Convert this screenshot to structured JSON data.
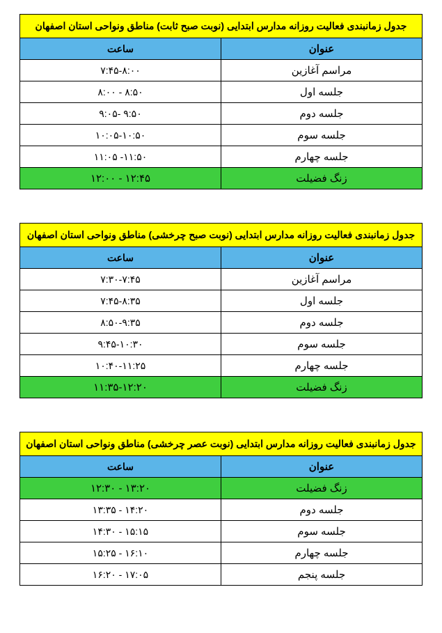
{
  "colors": {
    "title_bg": "#ffff00",
    "header_bg": "#5bb5e8",
    "highlight_bg": "#3fce3f",
    "row_bg": "#ffffff",
    "border": "#000000",
    "text": "#000000"
  },
  "typography": {
    "font_family": "Tahoma, Arial, sans-serif",
    "title_fontsize": 14,
    "title_fontweight": "bold",
    "header_fontsize": 14,
    "header_fontweight": "bold",
    "cell_fontsize": 14
  },
  "tables": [
    {
      "title": "جدول زمانبندی فعالیت روزانه مدارس ابتدایی (نوبت صبح ثابت) مناطق ونواحی استان اصفهان",
      "columns": [
        "عنوان",
        "ساعت"
      ],
      "rows": [
        {
          "label": "مراسم آغازین",
          "time": "۷:۴۵-۸:۰۰",
          "highlight": false
        },
        {
          "label": "جلسه اول",
          "time": "۸:۰۰ - ۸:۵۰",
          "highlight": false
        },
        {
          "label": "جلسه دوم",
          "time": "۹:۰۵- ۹:۵۰",
          "highlight": false
        },
        {
          "label": "جلسه سوم",
          "time": "۱۰:۰۵-۱۰:۵۰",
          "highlight": false
        },
        {
          "label": "جلسه چهارم",
          "time": "۱۱:۰۵ -۱۱:۵۰",
          "highlight": false
        },
        {
          "label": "زنگ فضیلت",
          "time": "۱۲:۰۰ - ۱۲:۴۵",
          "highlight": true
        }
      ]
    },
    {
      "title": "جدول زمانبندی فعالیت روزانه مدارس ابتدایی (نوبت صبح چرخشی) مناطق ونواحی استان اصفهان",
      "columns": [
        "عنوان",
        "ساعت"
      ],
      "rows": [
        {
          "label": "مراسم آغازین",
          "time": "۷:۳۰-۷:۴۵",
          "highlight": false
        },
        {
          "label": "جلسه اول",
          "time": "۷:۴۵-۸:۳۵",
          "highlight": false
        },
        {
          "label": "جلسه دوم",
          "time": "۸:۵۰-۹:۳۵",
          "highlight": false
        },
        {
          "label": "جلسه سوم",
          "time": "۹:۴۵-۱۰:۳۰",
          "highlight": false
        },
        {
          "label": "جلسه چهارم",
          "time": "۱۰:۴۰-۱۱:۲۵",
          "highlight": false
        },
        {
          "label": "زنگ فضیلت",
          "time": "۱۱:۳۵-۱۲:۲۰",
          "highlight": true
        }
      ]
    },
    {
      "title": "جدول زمانبندی فعالیت روزانه مدارس ابتدایی (نوبت عصر چرخشی) مناطق ونواحی استان اصفهان",
      "columns": [
        "عنوان",
        "ساعت"
      ],
      "rows": [
        {
          "label": "زنگ فضیلت",
          "time": "۱۲:۳۰ - ۱۳:۲۰",
          "highlight": true
        },
        {
          "label": "جلسه دوم",
          "time": "۱۳:۳۵ - ۱۴:۲۰",
          "highlight": false
        },
        {
          "label": "جلسه سوم",
          "time": "۱۴:۳۰ - ۱۵:۱۵",
          "highlight": false
        },
        {
          "label": "جلسه چهارم",
          "time": "۱۵:۲۵ - ۱۶:۱۰",
          "highlight": false
        },
        {
          "label": "جلسه پنجم",
          "time": "۱۶:۲۰ - ۱۷:۰۵",
          "highlight": false
        }
      ]
    }
  ]
}
